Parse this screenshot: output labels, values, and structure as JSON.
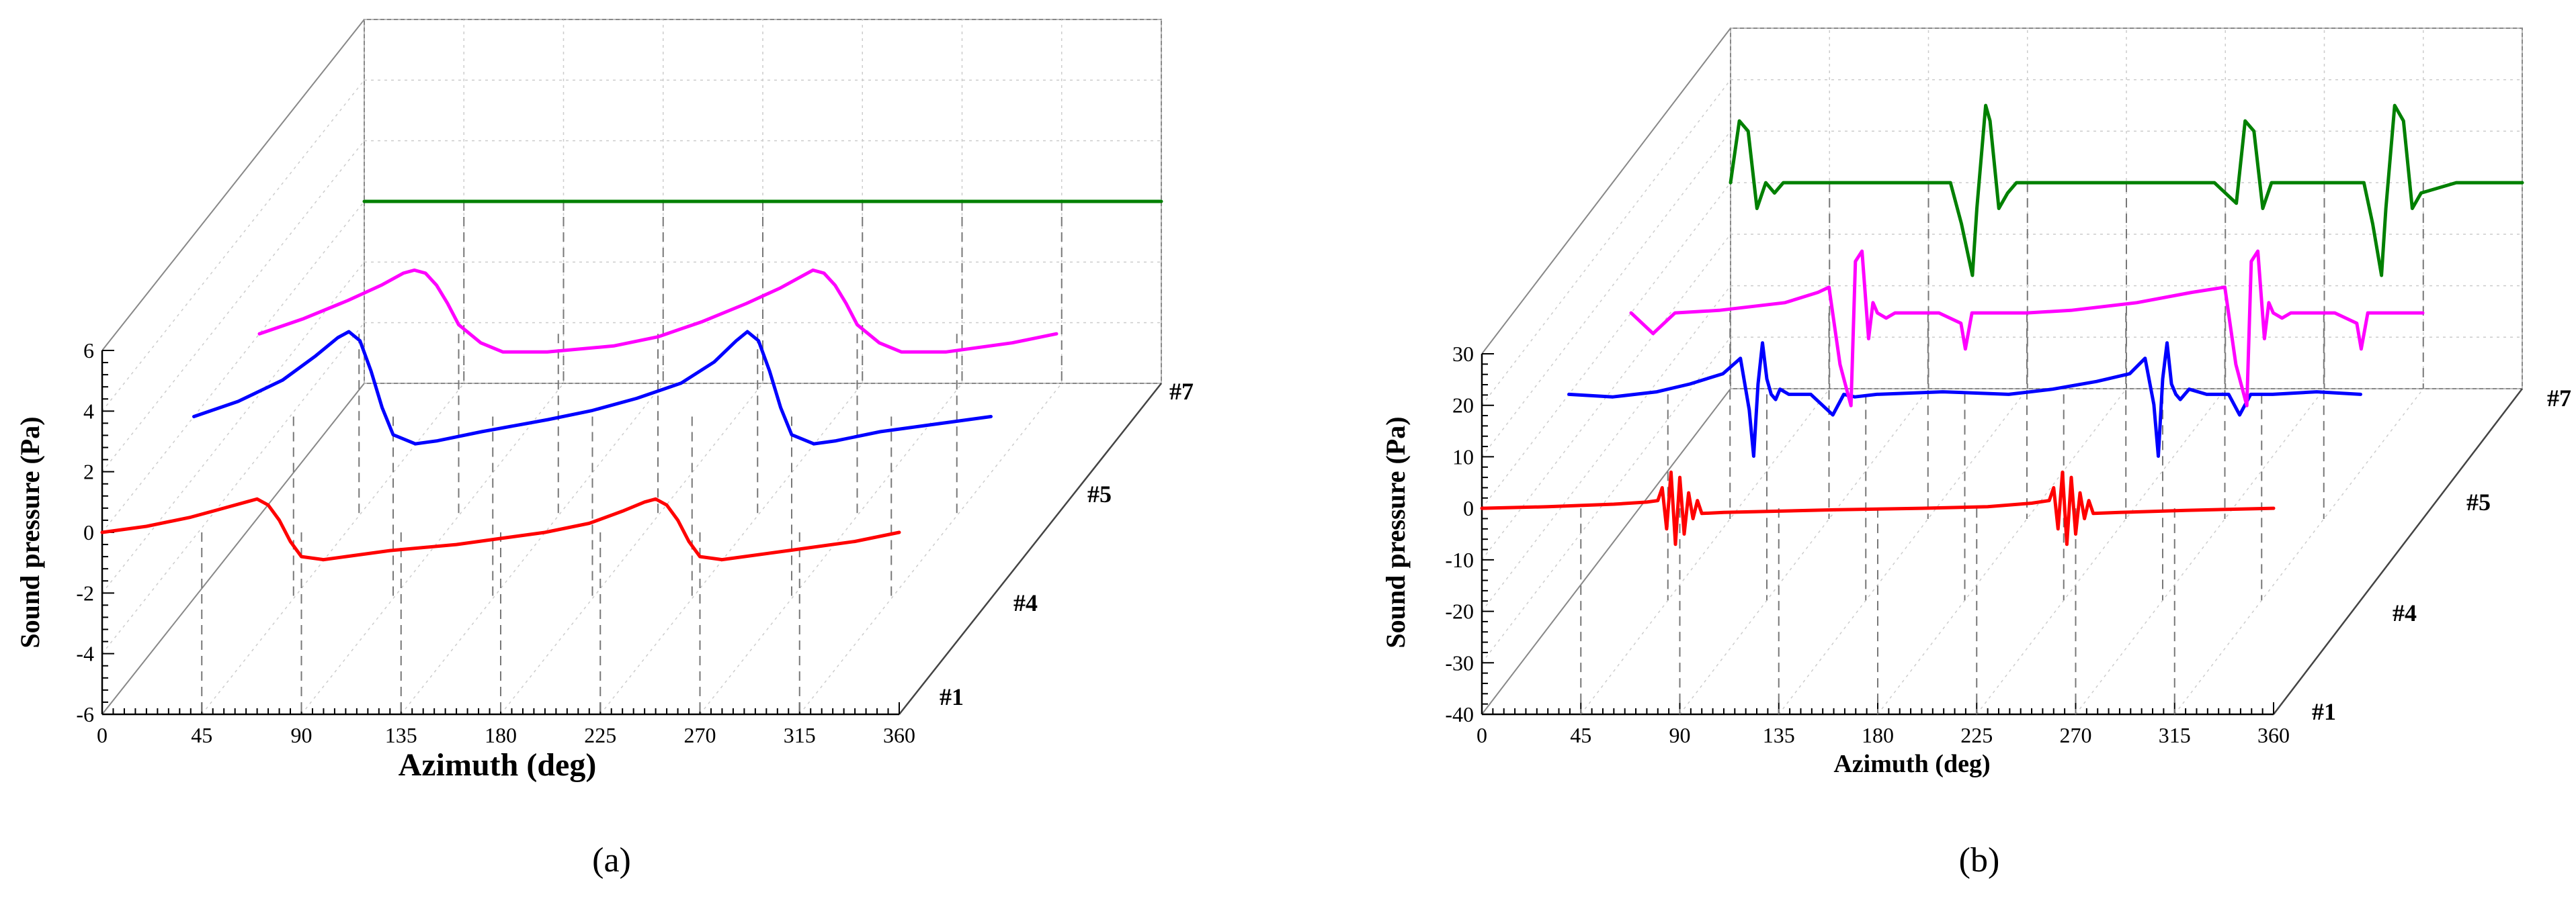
{
  "chart_data": [
    {
      "type": "line",
      "panel_label": "(a)",
      "xlabel": "Azimuth (deg)",
      "ylabel": "Sound pressure (Pa)",
      "xlim": [
        0,
        360
      ],
      "ylim": [
        -6,
        6
      ],
      "x_ticks": [
        "0",
        "45",
        "90",
        "135",
        "180",
        "225",
        "270",
        "315",
        "360"
      ],
      "y_ticks": [
        "-6",
        "-4",
        "-2",
        "0",
        "2",
        "4",
        "6"
      ],
      "depth_labels": [
        "#1",
        "#4",
        "#5",
        "#7"
      ],
      "series": [
        {
          "name": "#1",
          "color": "#ff0000",
          "x": [
            0,
            20,
            40,
            55,
            65,
            70,
            75,
            80,
            85,
            90,
            100,
            110,
            130,
            160,
            180,
            200,
            220,
            235,
            245,
            250,
            255,
            260,
            265,
            270,
            280,
            290,
            310,
            340,
            360
          ],
          "values": [
            0,
            0.2,
            0.5,
            0.8,
            1.0,
            1.1,
            0.9,
            0.4,
            -0.3,
            -0.8,
            -0.9,
            -0.8,
            -0.6,
            -0.4,
            -0.2,
            0,
            0.3,
            0.7,
            1.0,
            1.1,
            0.9,
            0.4,
            -0.3,
            -0.8,
            -0.9,
            -0.8,
            -0.6,
            -0.3,
            0
          ]
        },
        {
          "name": "#4",
          "color": "#0000ff",
          "x": [
            0,
            20,
            40,
            55,
            65,
            70,
            75,
            80,
            85,
            90,
            100,
            110,
            130,
            160,
            180,
            200,
            220,
            235,
            245,
            250,
            255,
            260,
            265,
            270,
            280,
            290,
            310,
            340,
            360
          ],
          "values": [
            0,
            0.5,
            1.2,
            2.0,
            2.6,
            2.8,
            2.5,
            1.5,
            0.3,
            -0.6,
            -0.9,
            -0.8,
            -0.5,
            -0.1,
            0.2,
            0.6,
            1.1,
            1.8,
            2.5,
            2.8,
            2.5,
            1.5,
            0.3,
            -0.6,
            -0.9,
            -0.8,
            -0.5,
            -0.2,
            0
          ]
        },
        {
          "name": "#5",
          "color": "#ff00ff",
          "x": [
            0,
            20,
            40,
            55,
            65,
            70,
            75,
            80,
            85,
            90,
            100,
            110,
            130,
            160,
            180,
            200,
            220,
            235,
            245,
            250,
            255,
            260,
            265,
            270,
            280,
            290,
            310,
            340,
            360
          ],
          "values": [
            0,
            0.5,
            1.1,
            1.6,
            2.0,
            2.1,
            2.0,
            1.6,
            1.0,
            0.3,
            -0.3,
            -0.6,
            -0.6,
            -0.4,
            -0.1,
            0.4,
            1.0,
            1.5,
            1.9,
            2.1,
            2.0,
            1.6,
            1.0,
            0.3,
            -0.3,
            -0.6,
            -0.6,
            -0.3,
            0
          ]
        },
        {
          "name": "#7",
          "color": "#008000",
          "x": [
            0,
            360
          ],
          "values": [
            0,
            0
          ]
        }
      ]
    },
    {
      "type": "line",
      "panel_label": "(b)",
      "xlabel": "Azimuth (deg)",
      "ylabel": "Sound pressure (Pa)",
      "xlim": [
        0,
        360
      ],
      "ylim": [
        -40,
        30
      ],
      "x_ticks": [
        "0",
        "45",
        "90",
        "135",
        "180",
        "225",
        "270",
        "315",
        "360"
      ],
      "y_ticks": [
        "-40",
        "-30",
        "-20",
        "-10",
        "0",
        "10",
        "20",
        "30"
      ],
      "depth_labels": [
        "#1",
        "#4",
        "#5",
        "#7"
      ],
      "series": [
        {
          "name": "#1",
          "color": "#ff0000",
          "x": [
            0,
            30,
            60,
            75,
            80,
            82,
            84,
            86,
            88,
            90,
            92,
            94,
            96,
            98,
            100,
            110,
            130,
            160,
            200,
            230,
            250,
            258,
            260,
            262,
            264,
            266,
            268,
            270,
            272,
            274,
            276,
            278,
            290,
            320,
            360
          ],
          "values": [
            0,
            0.3,
            0.8,
            1.2,
            1.5,
            4,
            -4,
            7,
            -7,
            6,
            -5,
            3,
            -2,
            1.5,
            -1,
            -0.8,
            -0.6,
            -0.3,
            0,
            0.3,
            1.0,
            1.5,
            4,
            -4,
            7,
            -7,
            6,
            -5,
            3,
            -2,
            1.5,
            -1,
            -0.8,
            -0.4,
            0
          ]
        },
        {
          "name": "#4",
          "color": "#0000ff",
          "x": [
            0,
            20,
            40,
            55,
            70,
            78,
            82,
            84,
            86,
            88,
            90,
            92,
            94,
            96,
            100,
            110,
            120,
            125,
            130,
            140,
            170,
            200,
            220,
            240,
            255,
            262,
            266,
            268,
            270,
            272,
            274,
            276,
            278,
            282,
            290,
            300,
            305,
            310,
            320,
            340,
            360
          ],
          "values": [
            0,
            -0.5,
            0.5,
            2,
            4,
            7,
            -3,
            -12,
            2,
            10,
            3,
            0,
            -1,
            1,
            0,
            0,
            -4,
            0,
            -0.5,
            0,
            0.5,
            0,
            1,
            2.5,
            4,
            7,
            -2,
            -12,
            3,
            10,
            2,
            0,
            -1,
            1,
            0,
            0,
            -4,
            0,
            0,
            0.5,
            0
          ]
        },
        {
          "name": "#5",
          "color": "#ff00ff",
          "x": [
            0,
            10,
            20,
            40,
            70,
            85,
            90,
            95,
            100,
            102,
            105,
            108,
            110,
            112,
            116,
            120,
            130,
            140,
            150,
            152,
            155,
            160,
            180,
            200,
            230,
            255,
            270,
            275,
            280,
            282,
            285,
            288,
            290,
            292,
            296,
            300,
            310,
            320,
            330,
            332,
            335,
            340,
            360
          ],
          "values": [
            0,
            -4,
            0,
            0.5,
            2,
            4,
            5,
            -10,
            -18,
            10,
            12,
            -5,
            2,
            0,
            -1,
            0,
            0,
            0,
            -2,
            -7,
            0,
            0,
            0,
            0.5,
            2,
            4,
            5,
            -10,
            -18,
            10,
            12,
            -5,
            2,
            0,
            -1,
            0,
            0,
            0,
            -2,
            -7,
            0,
            0,
            0
          ]
        },
        {
          "name": "#7",
          "color": "#008000",
          "x": [
            0,
            4,
            8,
            12,
            16,
            20,
            24,
            40,
            70,
            100,
            105,
            110,
            112,
            116,
            118,
            122,
            126,
            130,
            134,
            150,
            180,
            200,
            220,
            230,
            234,
            238,
            242,
            246,
            270,
            288,
            292,
            296,
            298,
            302,
            306,
            310,
            314,
            330,
            360
          ],
          "values": [
            0,
            12,
            10,
            -5,
            0,
            -2,
            0,
            0,
            0,
            0,
            -8,
            -18,
            -5,
            15,
            12,
            -5,
            -2,
            0,
            0,
            0,
            0,
            0,
            0,
            -4,
            12,
            10,
            -5,
            0,
            0,
            0,
            -8,
            -18,
            -5,
            15,
            12,
            -5,
            -2,
            0,
            0
          ]
        }
      ]
    }
  ]
}
